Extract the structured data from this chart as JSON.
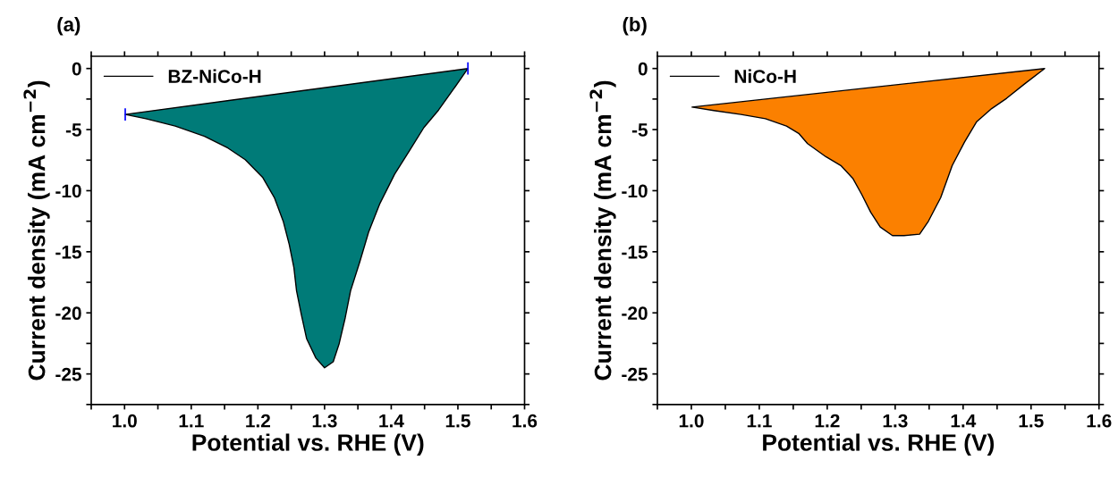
{
  "chart_data": [
    {
      "type": "area",
      "title": "(a)",
      "xlabel": "Potential vs. RHE (V)",
      "ylabel": "Current density (mA cm$^{−2}$)",
      "xlim": [
        0.95,
        1.6
      ],
      "ylim": [
        -27.5,
        1
      ],
      "xticks": [
        {
          "value": 0.95,
          "label": null
        },
        {
          "value": 1.0,
          "label": "1.0"
        },
        {
          "value": 1.05,
          "label": null
        },
        1.1,
        {
          "value": 1.15,
          "label": null
        },
        1.2,
        {
          "value": 1.25,
          "label": null
        },
        1.3,
        {
          "value": 1.35,
          "label": null
        },
        1.4,
        {
          "value": 1.45,
          "label": null
        },
        1.5,
        {
          "value": 1.55,
          "label": null
        },
        1.6
      ],
      "yticks": [
        {
          "value": -27.5,
          "label": null
        },
        -25,
        {
          "value": -22.5,
          "label": null
        },
        -20,
        {
          "value": -17.5,
          "label": null
        },
        -15,
        {
          "value": -12.5,
          "label": null
        },
        -10,
        {
          "value": -7.5,
          "label": null
        },
        -5,
        {
          "value": -2.5,
          "label": null
        },
        0
      ],
      "legend": "top left",
      "grid": false,
      "series": [
        {
          "name": "BZ-NiCo-H",
          "color": "#007b78",
          "x": [
            1.001,
            1.515,
            1.493,
            1.471,
            1.449,
            1.427,
            1.405,
            1.383,
            1.366,
            1.353,
            1.339,
            1.331,
            1.322,
            1.313,
            1.3,
            1.287,
            1.273,
            1.265,
            1.258,
            1.254,
            1.247,
            1.238,
            1.225,
            1.207,
            1.181,
            1.155,
            1.12,
            1.076,
            1.032,
            1.001
          ],
          "values": [
            -3.76,
            0,
            -1.72,
            -3.4,
            -4.83,
            -6.75,
            -8.66,
            -11.05,
            -13.4,
            -15.8,
            -18.2,
            -20.4,
            -22.5,
            -24.0,
            -24.5,
            -23.7,
            -22.1,
            -20.1,
            -18.2,
            -16.3,
            -14.4,
            -12.5,
            -10.6,
            -8.9,
            -7.46,
            -6.51,
            -5.55,
            -4.71,
            -4.11,
            -3.76
          ],
          "errors": [
            0.5,
            0.5,
            null,
            null,
            null,
            null,
            null,
            null,
            null,
            null,
            null,
            null,
            null,
            null,
            null,
            null,
            null,
            null,
            null,
            null,
            null,
            null,
            null,
            null,
            null,
            null,
            null,
            null,
            null,
            null
          ]
        }
      ]
    },
    {
      "type": "area",
      "title": "(b)",
      "xlabel": "Potential vs. RHE (V)",
      "ylabel": "Current density (mA cm$^{−2}$)",
      "xlim": [
        0.95,
        1.6
      ],
      "ylim": [
        -27.5,
        1
      ],
      "xticks": [
        {
          "value": 0.95,
          "label": null
        },
        {
          "value": 1.0,
          "label": "1.0"
        },
        {
          "value": 1.05,
          "label": null
        },
        1.1,
        {
          "value": 1.15,
          "label": null
        },
        1.2,
        {
          "value": 1.25,
          "label": null
        },
        1.3,
        {
          "value": 1.35,
          "label": null
        },
        1.4,
        {
          "value": 1.45,
          "label": null
        },
        1.5,
        {
          "value": 1.55,
          "label": null
        },
        1.6
      ],
      "yticks": [
        {
          "value": -27.5,
          "label": null
        },
        -25,
        {
          "value": -22.5,
          "label": null
        },
        -20,
        {
          "value": -17.5,
          "label": null
        },
        -15,
        {
          "value": -12.5,
          "label": null
        },
        -10,
        {
          "value": -7.5,
          "label": null
        },
        -5,
        {
          "value": -2.5,
          "label": null
        },
        0
      ],
      "legend": "top left",
      "grid": false,
      "series": [
        {
          "name": "NiCo-H",
          "color": "#fb8000",
          "x": [
            1.001,
            1.52,
            1.491,
            1.464,
            1.442,
            1.42,
            1.402,
            1.384,
            1.367,
            1.349,
            1.336,
            1.313,
            1.296,
            1.278,
            1.264,
            1.251,
            1.238,
            1.22,
            1.198,
            1.171,
            1.158,
            1.14,
            1.109,
            1.073,
            1.033,
            1.001
          ],
          "values": [
            -3.16,
            0,
            -1.24,
            -2.44,
            -3.28,
            -4.35,
            -6.03,
            -7.94,
            -10.57,
            -12.49,
            -13.56,
            -13.68,
            -13.68,
            -12.97,
            -11.77,
            -10.33,
            -9.02,
            -7.94,
            -7.22,
            -6.15,
            -5.31,
            -4.71,
            -4.11,
            -3.76,
            -3.44,
            -3.16
          ]
        }
      ]
    }
  ]
}
